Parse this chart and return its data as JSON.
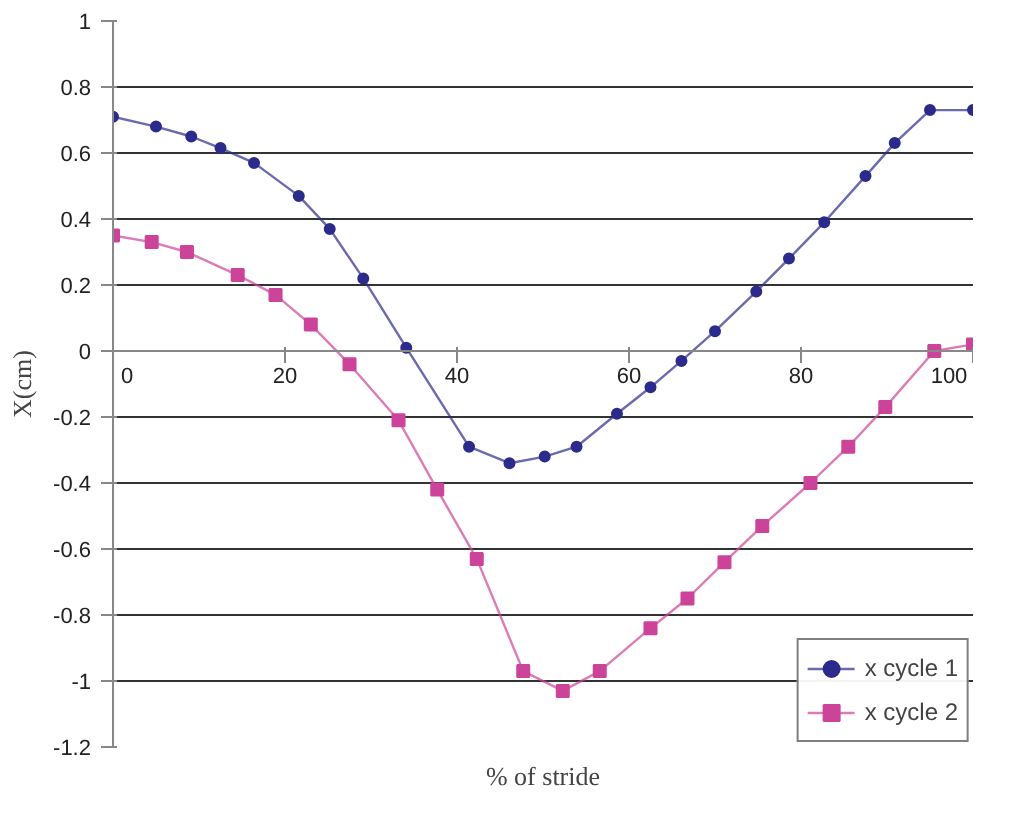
{
  "chart_data": {
    "type": "line",
    "xlabel": "% of stride",
    "ylabel": "X(cm)",
    "xlim": [
      0,
      100
    ],
    "xticks": [
      0,
      20,
      40,
      60,
      80,
      100
    ],
    "ylim": [
      -1.2,
      1
    ],
    "yticks": [
      -1.2,
      -1,
      -0.8,
      -0.6,
      -0.4,
      -0.2,
      0,
      0.2,
      0.4,
      0.6,
      0.8,
      1
    ],
    "grid": "y",
    "legend": "bottom right",
    "series": [
      {
        "name": "x cycle 1",
        "color": "#2b2b8c",
        "marker": "circle",
        "x": [
          0,
          5,
          9.1,
          12.5,
          16.4,
          21.6,
          25.2,
          29.1,
          34.1,
          41.4,
          46.1,
          50.2,
          53.9,
          58.6,
          62.5,
          66.1,
          70,
          74.8,
          78.6,
          82.7,
          87.5,
          90.9,
          95,
          100
        ],
        "values": [
          0.71,
          0.68,
          0.65,
          0.615,
          0.57,
          0.47,
          0.37,
          0.22,
          0.01,
          -0.29,
          -0.34,
          -0.32,
          -0.29,
          -0.19,
          -0.11,
          -0.03,
          0.06,
          0.18,
          0.28,
          0.39,
          0.53,
          0.63,
          0.73,
          0.73
        ]
      },
      {
        "name": "x cycle 2",
        "color": "#cc4499",
        "marker": "square",
        "x": [
          0,
          4.5,
          8.6,
          14.5,
          18.9,
          23,
          27.5,
          33.2,
          37.7,
          42.3,
          47.7,
          52.3,
          56.6,
          62.5,
          66.8,
          71.1,
          75.5,
          81.1,
          85.5,
          89.8,
          95.5,
          100
        ],
        "values": [
          0.35,
          0.33,
          0.3,
          0.23,
          0.17,
          0.08,
          -0.04,
          -0.21,
          -0.42,
          -0.63,
          -0.97,
          -1.03,
          -0.97,
          -0.84,
          -0.75,
          -0.64,
          -0.53,
          -0.4,
          -0.29,
          -0.17,
          0.0,
          0.02
        ]
      }
    ]
  }
}
